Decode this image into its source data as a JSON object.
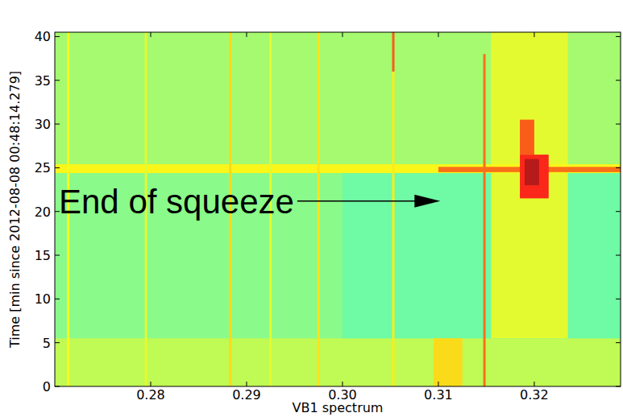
{
  "chart_data": {
    "type": "heatmap",
    "xlabel": "VB1 spectrum",
    "ylabel": "Time [min since 2012-08-08 00:48:14.279]",
    "xlim": [
      0.27,
      0.329
    ],
    "ylim": [
      0,
      40.5
    ],
    "xticks": [
      0.28,
      0.29,
      {
        "value": 0.3,
        "label": "0.30"
      },
      0.31,
      0.32
    ],
    "yticks": [
      0,
      5,
      10,
      15,
      20,
      25,
      30,
      35,
      40
    ],
    "zlim": [
      0,
      1
    ],
    "regions": [
      {
        "x0": 0.27,
        "x1": 0.329,
        "y0": 0,
        "y1": 40.5,
        "z": 0.56
      },
      {
        "x0": 0.27,
        "x1": 0.329,
        "y0": 5.5,
        "y1": 24.4,
        "z": 0.5
      },
      {
        "x0": 0.3,
        "x1": 0.329,
        "y0": 5.5,
        "y1": 24.4,
        "z": 0.47
      },
      {
        "x0": 0.27,
        "x1": 0.329,
        "y0": 25.4,
        "y1": 40.5,
        "z": 0.53
      },
      {
        "x0": 0.3155,
        "x1": 0.3235,
        "y0": 5.5,
        "y1": 40.5,
        "z": 0.6
      },
      {
        "x0": 0.3095,
        "x1": 0.3125,
        "y0": 0,
        "y1": 5.5,
        "z": 0.66
      },
      {
        "x0": 0.27,
        "x1": 0.329,
        "y0": 24.4,
        "y1": 25.4,
        "z": 0.63
      },
      {
        "x0": 0.31,
        "x1": 0.329,
        "y0": 24.5,
        "y1": 25.1,
        "z": 0.78
      },
      {
        "x0": 0.3185,
        "x1": 0.3215,
        "y0": 21.5,
        "y1": 26.5,
        "z": 0.86
      },
      {
        "x0": 0.319,
        "x1": 0.3205,
        "y0": 23,
        "y1": 26,
        "z": 0.95
      },
      {
        "x0": 0.3185,
        "x1": 0.32,
        "y0": 26.5,
        "y1": 30.5,
        "z": 0.8
      }
    ],
    "lines": [
      {
        "x": 0.2714,
        "y0": 0,
        "y1": 40.5,
        "z": 0.62
      },
      {
        "x": 0.2795,
        "y0": 0,
        "y1": 40.5,
        "z": 0.6
      },
      {
        "x": 0.2883,
        "y0": 0,
        "y1": 40.5,
        "z": 0.66
      },
      {
        "x": 0.2925,
        "y0": 0,
        "y1": 40.5,
        "z": 0.6
      },
      {
        "x": 0.2975,
        "y0": 0,
        "y1": 40.5,
        "z": 0.65
      },
      {
        "x": 0.3053,
        "y0": 0,
        "y1": 36,
        "z": 0.64
      },
      {
        "x": 0.3053,
        "y0": 36,
        "y1": 40.5,
        "z": 0.8
      },
      {
        "x": 0.3148,
        "y0": 0,
        "y1": 38,
        "z": 0.78
      }
    ],
    "annotation": {
      "text": "End of squeeze",
      "x": 0.3102,
      "y": 21.2
    }
  }
}
